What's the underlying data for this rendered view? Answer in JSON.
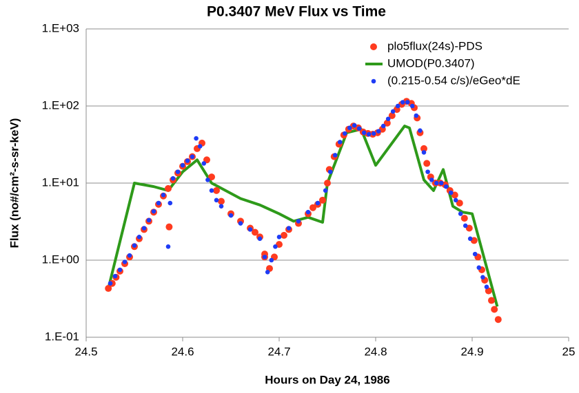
{
  "chart_data": {
    "type": "scatter",
    "title": "P0.3407 MeV Flux vs Time",
    "x_label": "Hours on Day 24, 1986",
    "y_label": "Flux (no#/cm²-s-sr-keV)",
    "ylog": true,
    "grid": true,
    "legend": "upper right",
    "xlim": [
      24.5,
      25
    ],
    "xticks": [
      24.5,
      24.6,
      24.7,
      24.8,
      24.9,
      25
    ],
    "ylim": [
      0.1,
      1000
    ],
    "yticks": [
      {
        "value": 0.1,
        "label": "1.E-01"
      },
      {
        "value": 1,
        "label": "1.E+00"
      },
      {
        "value": 10,
        "label": "1.E+01"
      },
      {
        "value": 100,
        "label": "1.E+02"
      },
      {
        "value": 1000,
        "label": "1.E+03"
      }
    ],
    "series": [
      {
        "name": "plo5flux(24s)-PDS",
        "color": "#ff3b1f",
        "style": "markers",
        "x": [
          24.523,
          24.527,
          24.531,
          24.535,
          24.54,
          24.545,
          24.55,
          24.555,
          24.56,
          24.565,
          24.57,
          24.575,
          24.58,
          24.585,
          24.59,
          24.595,
          24.6,
          24.605,
          24.61,
          24.615,
          24.62,
          24.625,
          24.63,
          24.635,
          24.64,
          24.65,
          24.66,
          24.67,
          24.675,
          24.68,
          24.685,
          24.69,
          24.695,
          24.7,
          24.705,
          24.71,
          24.72,
          24.73,
          24.735,
          24.74,
          24.745,
          24.75,
          24.752,
          24.757,
          24.762,
          24.767,
          24.772,
          24.777,
          24.782,
          24.787,
          24.792,
          24.797,
          24.802,
          24.807,
          24.812,
          24.817,
          24.822,
          24.827,
          24.832,
          24.837,
          24.84,
          24.843,
          24.846,
          24.85,
          24.853,
          24.857,
          24.862,
          24.867,
          24.872,
          24.877,
          24.882,
          24.887,
          24.892,
          24.897,
          24.902,
          24.906,
          24.91,
          24.913,
          24.917,
          24.92,
          24.923,
          24.927,
          24.586,
          24.685
        ],
        "values": [
          0.43,
          0.5,
          0.6,
          0.72,
          0.9,
          1.1,
          1.5,
          1.9,
          2.5,
          3.2,
          4.2,
          5.3,
          6.8,
          8.5,
          11,
          13.5,
          16.5,
          19,
          22,
          28,
          33,
          20,
          12,
          8,
          5.8,
          4,
          3.2,
          2.6,
          2.3,
          2,
          1.2,
          0.78,
          1.1,
          1.6,
          2.1,
          2.5,
          3,
          4,
          4.8,
          5.3,
          6,
          10,
          15,
          22,
          32,
          42,
          50,
          55,
          52,
          46,
          44,
          43,
          45,
          50,
          60,
          75,
          90,
          105,
          115,
          108,
          95,
          70,
          45,
          28,
          18,
          12,
          10,
          10,
          9.5,
          8,
          7,
          5.5,
          3.5,
          2.6,
          1.8,
          1.1,
          0.75,
          0.55,
          0.4,
          0.3,
          0.23,
          0.17,
          2.7,
          1.1
        ]
      },
      {
        "name": "UMOD(P0.3407)",
        "color": "#2e9a1a",
        "style": "line",
        "x": [
          24.523,
          24.55,
          24.57,
          24.585,
          24.6,
          24.615,
          24.63,
          24.66,
          24.68,
          24.7,
          24.715,
          24.73,
          24.745,
          24.75,
          24.77,
          24.785,
          24.8,
          24.83,
          24.835,
          24.85,
          24.86,
          24.87,
          24.88,
          24.89,
          24.9,
          24.926
        ],
        "values": [
          0.43,
          10,
          9,
          8,
          14,
          20,
          10,
          6.3,
          5.2,
          4,
          3.2,
          3.6,
          3.1,
          10,
          45,
          50,
          17,
          55,
          52,
          11,
          8,
          15,
          5,
          4.2,
          4,
          0.25
        ]
      },
      {
        "name": "(0.215-0.54 c/s)/eGeo*dE",
        "color": "#1f3cf5",
        "style": "markers",
        "x": [
          24.525,
          24.53,
          24.535,
          24.54,
          24.545,
          24.55,
          24.555,
          24.56,
          24.565,
          24.57,
          24.575,
          24.58,
          24.59,
          24.595,
          24.6,
          24.605,
          24.61,
          24.614,
          24.618,
          24.622,
          24.626,
          24.63,
          24.635,
          24.64,
          24.65,
          24.66,
          24.67,
          24.68,
          24.685,
          24.688,
          24.692,
          24.696,
          24.7,
          24.71,
          24.72,
          24.73,
          24.74,
          24.748,
          24.753,
          24.758,
          24.763,
          24.768,
          24.773,
          24.778,
          24.783,
          24.788,
          24.793,
          24.798,
          24.803,
          24.808,
          24.813,
          24.818,
          24.823,
          24.828,
          24.833,
          24.838,
          24.842,
          24.846,
          24.85,
          24.854,
          24.858,
          24.863,
          24.868,
          24.873,
          24.878,
          24.883,
          24.888,
          24.893,
          24.898,
          24.903,
          24.907,
          24.911,
          24.915,
          24.587,
          24.585
        ],
        "values": [
          0.5,
          0.62,
          0.75,
          0.95,
          1.15,
          1.55,
          2,
          2.6,
          3.3,
          4.3,
          5.5,
          7,
          11.5,
          14,
          17,
          19.5,
          22,
          38,
          30,
          18,
          11,
          8,
          6,
          5,
          3.8,
          3,
          2.5,
          1.9,
          1.1,
          0.7,
          1,
          1.5,
          2,
          2.6,
          3.2,
          4.2,
          5.5,
          8,
          14,
          23,
          34,
          44,
          52,
          56,
          51,
          45,
          43,
          44,
          47,
          55,
          68,
          85,
          100,
          112,
          112,
          100,
          75,
          48,
          25,
          14,
          11,
          10,
          10,
          9,
          7.5,
          6,
          4,
          2.8,
          1.9,
          1.2,
          0.8,
          0.6,
          0.45,
          5.5,
          1.5
        ]
      }
    ]
  }
}
